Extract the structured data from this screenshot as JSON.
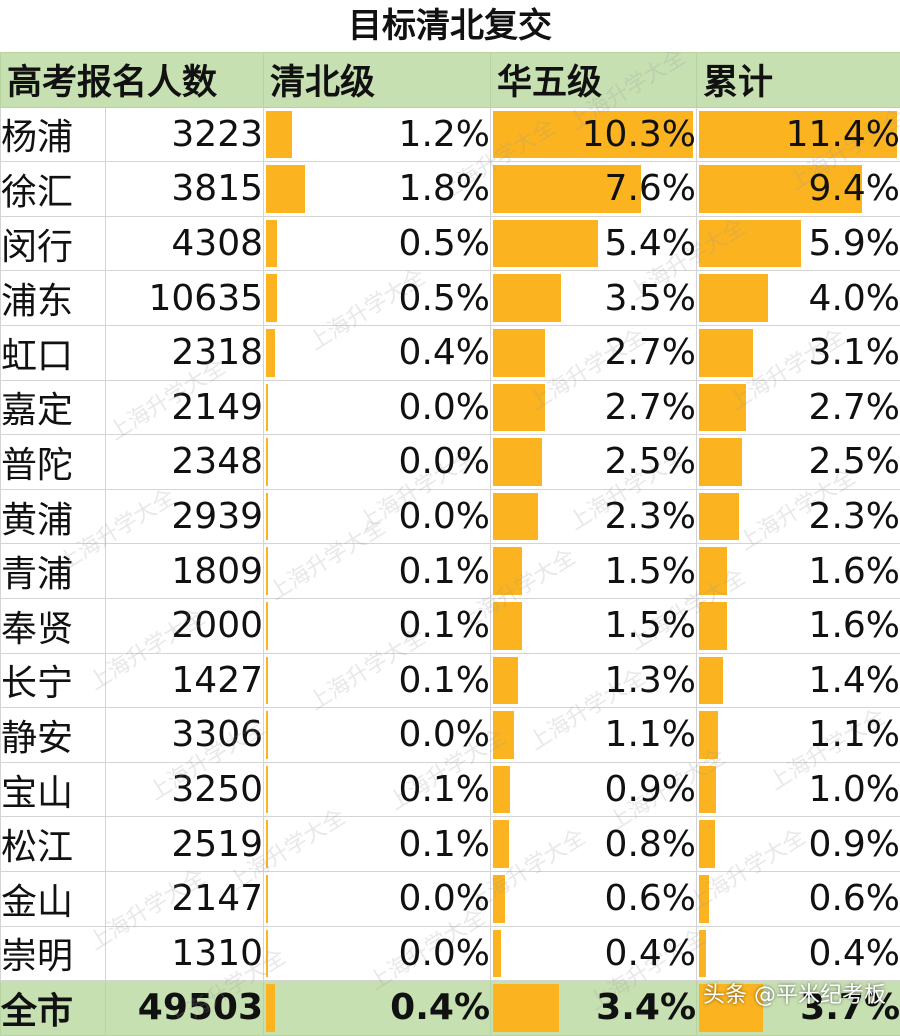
{
  "title": "目标清北复交",
  "watermark": "上海升学大全",
  "credit": "头条 @平米纪考板",
  "colors": {
    "bar": "#fbb41f",
    "header_bg": "#c7e0b2"
  },
  "chart_data": {
    "type": "table",
    "columns": [
      "高考报名人数",
      "清北级",
      "华五级",
      "累计"
    ],
    "rows": [
      {
        "district": "杨浦",
        "count": "3223",
        "qb": 1.2,
        "h5": 10.3,
        "total": 11.4
      },
      {
        "district": "徐汇",
        "count": "3815",
        "qb": 1.8,
        "h5": 7.6,
        "total": 9.4
      },
      {
        "district": "闵行",
        "count": "4308",
        "qb": 0.5,
        "h5": 5.4,
        "total": 5.9
      },
      {
        "district": "浦东",
        "count": "10635",
        "qb": 0.5,
        "h5": 3.5,
        "total": 4.0
      },
      {
        "district": "虹口",
        "count": "2318",
        "qb": 0.4,
        "h5": 2.7,
        "total": 3.1
      },
      {
        "district": "嘉定",
        "count": "2149",
        "qb": 0.0,
        "h5": 2.7,
        "total": 2.7
      },
      {
        "district": "普陀",
        "count": "2348",
        "qb": 0.0,
        "h5": 2.5,
        "total": 2.5
      },
      {
        "district": "黄浦",
        "count": "2939",
        "qb": 0.0,
        "h5": 2.3,
        "total": 2.3
      },
      {
        "district": "青浦",
        "count": "1809",
        "qb": 0.1,
        "h5": 1.5,
        "total": 1.6
      },
      {
        "district": "奉贤",
        "count": "2000",
        "qb": 0.1,
        "h5": 1.5,
        "total": 1.6
      },
      {
        "district": "长宁",
        "count": "1427",
        "qb": 0.1,
        "h5": 1.3,
        "total": 1.4
      },
      {
        "district": "静安",
        "count": "3306",
        "qb": 0.0,
        "h5": 1.1,
        "total": 1.1
      },
      {
        "district": "宝山",
        "count": "3250",
        "qb": 0.1,
        "h5": 0.9,
        "total": 1.0
      },
      {
        "district": "松江",
        "count": "2519",
        "qb": 0.1,
        "h5": 0.8,
        "total": 0.9
      },
      {
        "district": "金山",
        "count": "2147",
        "qb": 0.0,
        "h5": 0.6,
        "total": 0.6
      },
      {
        "district": "崇明",
        "count": "1310",
        "qb": 0.0,
        "h5": 0.4,
        "total": 0.4
      }
    ],
    "total_row": {
      "district": "全市",
      "count": "49503",
      "qb": 0.4,
      "h5": 3.4,
      "total": 3.7
    },
    "bar_scale": {
      "qb_max": 10.3,
      "h5_max": 10.3,
      "total_max": 11.4
    }
  }
}
